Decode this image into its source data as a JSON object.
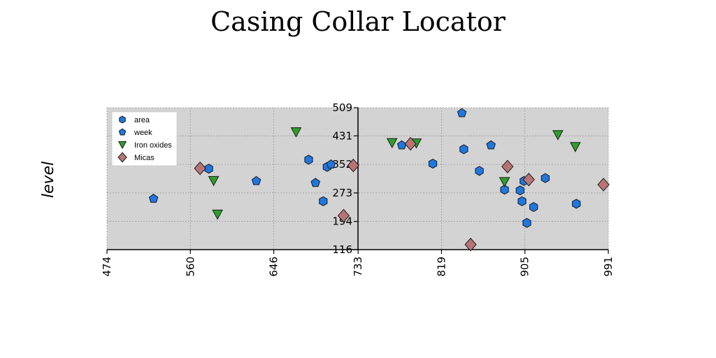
{
  "chart_data": {
    "type": "scatter",
    "title": "Casing Collar Locator",
    "xlabel": "",
    "ylabel": "level",
    "xlim": [
      474,
      991
    ],
    "ylim": [
      116,
      509
    ],
    "xticks": [
      "474",
      "560",
      "646",
      "733",
      "819",
      "905",
      "991"
    ],
    "yticks": [
      "116",
      "194",
      "273",
      "352",
      "431",
      "509"
    ],
    "grid": true,
    "legend": "top-left",
    "background": "#d3d3d3",
    "series": [
      {
        "name": "area",
        "marker": "hexagon",
        "color": "#1f77e0",
        "points": [
          [
            579,
            340
          ],
          [
            682,
            365
          ],
          [
            697,
            250
          ],
          [
            701,
            345
          ],
          [
            858,
            334
          ],
          [
            900,
            280
          ],
          [
            902,
            250
          ],
          [
            904,
            306
          ],
          [
            907,
            190
          ],
          [
            884,
            282
          ],
          [
            842,
            394
          ],
          [
            914,
            234
          ],
          [
            926,
            314
          ],
          [
            958,
            243
          ],
          [
            810,
            354
          ]
        ]
      },
      {
        "name": "week",
        "marker": "pentagon",
        "color": "#1f77e0",
        "points": [
          [
            522,
            257
          ],
          [
            628,
            306
          ],
          [
            689,
            301
          ],
          [
            705,
            352
          ],
          [
            778,
            405
          ],
          [
            840,
            494
          ],
          [
            870,
            405
          ]
        ]
      },
      {
        "name": "Iron oxides",
        "marker": "triangle-down",
        "color": "#2ca02c",
        "points": [
          [
            669,
            442
          ],
          [
            588,
            214
          ],
          [
            584,
            307
          ],
          [
            793,
            411
          ],
          [
            957,
            401
          ],
          [
            768,
            412
          ],
          [
            884,
            304
          ],
          [
            939,
            434
          ]
        ]
      },
      {
        "name": "Micas",
        "marker": "diamond",
        "color": "#b87474",
        "points": [
          [
            570,
            341
          ],
          [
            718,
            210
          ],
          [
            728,
            349
          ],
          [
            787,
            409
          ],
          [
            849,
            130
          ],
          [
            887,
            346
          ],
          [
            909,
            310
          ],
          [
            986,
            296
          ]
        ]
      }
    ]
  }
}
